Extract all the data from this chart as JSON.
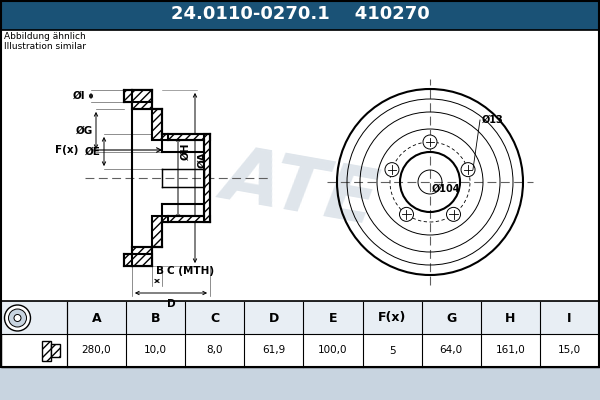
{
  "title_part1": "24.0110-0270.1",
  "title_part2": "410270",
  "title_bg": "#1a5276",
  "title_text_color": "#ffffff",
  "bg_color": "#c8d4e0",
  "drawing_bg": "#ffffff",
  "table_bg_header": "#e0e8f0",
  "table_bg_value": "#ffffff",
  "table_headers": [
    "A",
    "B",
    "C",
    "D",
    "E",
    "F(x)",
    "G",
    "H",
    "I"
  ],
  "table_values": [
    "280,0",
    "10,0",
    "8,0",
    "61,9",
    "100,0",
    "5",
    "64,0",
    "161,0",
    "15,0"
  ],
  "note_line1": "Abbildung ähnlich",
  "note_line2": "Illustration similar",
  "line_color": "#000000",
  "hatch_color": "#000000",
  "centerline_color": "#606060",
  "watermark_color": "#c0ccd8",
  "dim_color": "#000000"
}
